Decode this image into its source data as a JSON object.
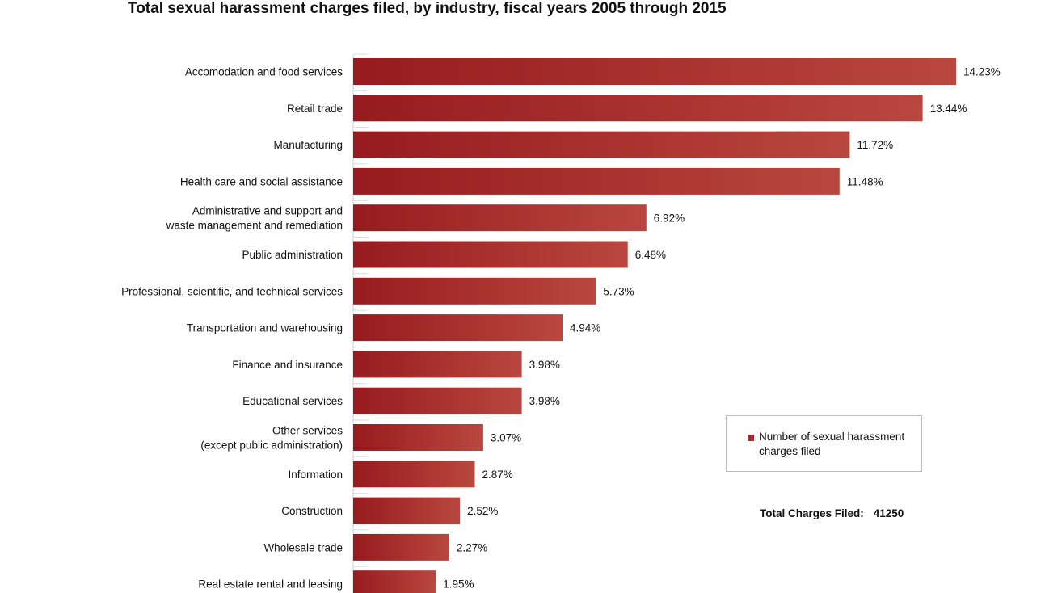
{
  "chart_data": {
    "type": "bar",
    "orientation": "horizontal",
    "title": "Total sexual harassment charges filed, by industry, fiscal years 2005 through 2015",
    "categories": [
      "Accomodation and food services",
      "Retail trade",
      "Manufacturing",
      "Health care and social assistance",
      "Administrative and support and\nwaste management and remediation",
      "Public administration",
      "Professional, scientific, and technical services",
      "Transportation and warehousing",
      "Finance and insurance",
      "Educational services",
      "Other services\n(except public administration)",
      "Information",
      "Construction",
      "Wholesale trade",
      "Real estate rental and leasing"
    ],
    "values": [
      14.23,
      13.44,
      11.72,
      11.48,
      6.92,
      6.48,
      5.73,
      4.94,
      3.98,
      3.98,
      3.07,
      2.87,
      2.52,
      2.27,
      1.95
    ],
    "value_labels": [
      "14.23%",
      "13.44%",
      "11.72%",
      "11.48%",
      "6.92%",
      "6.48%",
      "5.73%",
      "4.94%",
      "3.98%",
      "3.98%",
      "3.07%",
      "2.87%",
      "2.52%",
      "2.27%",
      "1.95%"
    ],
    "series": [
      {
        "name": "Number of sexual harassment charges filed"
      }
    ],
    "xlim": [
      0,
      14.23
    ],
    "grid": false,
    "legend_position": "right",
    "colors": {
      "bar_dark": "#971b1e",
      "bar_light": "#b9473f",
      "swatch": "#a12a2a"
    }
  },
  "legend": {
    "label": "Number of sexual harassment charges filed"
  },
  "total": {
    "label": "Total Charges Filed:",
    "value": "41250"
  }
}
